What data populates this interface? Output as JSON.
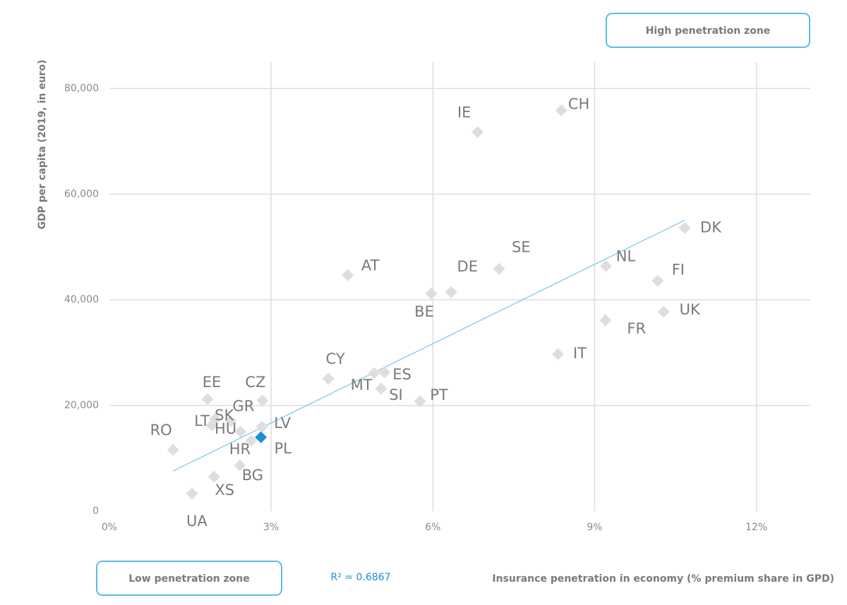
{
  "chart_data": {
    "type": "scatter",
    "x_label": "Insurance penetration in economy (% premium share in GPD)",
    "y_label": "GDP per capita (2019, in euro)",
    "zone_high": "High penetration zone",
    "zone_low": "Low penetration zone",
    "r_squared": "R² = 0.6867",
    "point_labels": [
      "IE",
      "CH",
      "DK",
      "SE",
      "NL",
      "FI",
      "UK",
      "FR",
      "IT",
      "AT",
      "DE",
      "BE",
      "CY",
      "ES",
      "MT",
      "SI",
      "PT",
      "EE",
      "CZ",
      "GR",
      "SK",
      "LT",
      "HU",
      "LV",
      "HR",
      "PL",
      "RO",
      "BG",
      "XS",
      "UA"
    ],
    "x": [
      6.83,
      8.38,
      10.67,
      7.23,
      9.21,
      10.17,
      10.28,
      9.2,
      8.32,
      4.42,
      6.34,
      5.97,
      4.06,
      5.1,
      4.91,
      5.04,
      5.76,
      1.82,
      2.84,
      2.25,
      1.96,
      1.9,
      2.43,
      2.83,
      2.63,
      2.81,
      1.18,
      2.42,
      1.94,
      1.53
    ],
    "y": [
      71733,
      75867,
      53600,
      45867,
      46400,
      43600,
      37733,
      36133,
      29733,
      44667,
      41467,
      41200,
      25067,
      26267,
      26133,
      23200,
      20800,
      21200,
      20933,
      17067,
      17467,
      16267,
      15067,
      16000,
      13333,
      14000,
      11600,
      8667,
      6533,
      3333
    ],
    "colors": [
      "#dedede",
      "#dedede",
      "#dedede",
      "#dedede",
      "#dedede",
      "#dedede",
      "#dedede",
      "#dedede",
      "#dedede",
      "#dedede",
      "#dedede",
      "#dedede",
      "#dedede",
      "#dedede",
      "#dedede",
      "#dedede",
      "#dedede",
      "#dedede",
      "#dedede",
      "#dedede",
      "#dedede",
      "#dedede",
      "#dedede",
      "#dedede",
      "#dedede",
      "#1a8fd6",
      "#dedede",
      "#dedede",
      "#dedede",
      "#dedede"
    ],
    "trendline": {
      "x": [
        1.18,
        10.67
      ],
      "y": [
        7600,
        55067
      ],
      "color": "#7dc9ec"
    },
    "xlim": [
      0,
      13
    ],
    "ylim": [
      0,
      85000
    ],
    "xticks": [
      {
        "value": 0,
        "label": "0%"
      },
      {
        "value": 3,
        "label": "3%"
      },
      {
        "value": 6,
        "label": "6%"
      },
      {
        "value": 9,
        "label": "9%"
      },
      {
        "value": 12,
        "label": "12%"
      }
    ],
    "yticks": [
      0,
      {
        "value": 20000,
        "label": "20,000"
      },
      {
        "value": 40000,
        "label": "40,000"
      },
      {
        "value": 60000,
        "label": "60,000"
      },
      {
        "value": 80000,
        "label": "80,000"
      }
    ],
    "grid": true
  }
}
